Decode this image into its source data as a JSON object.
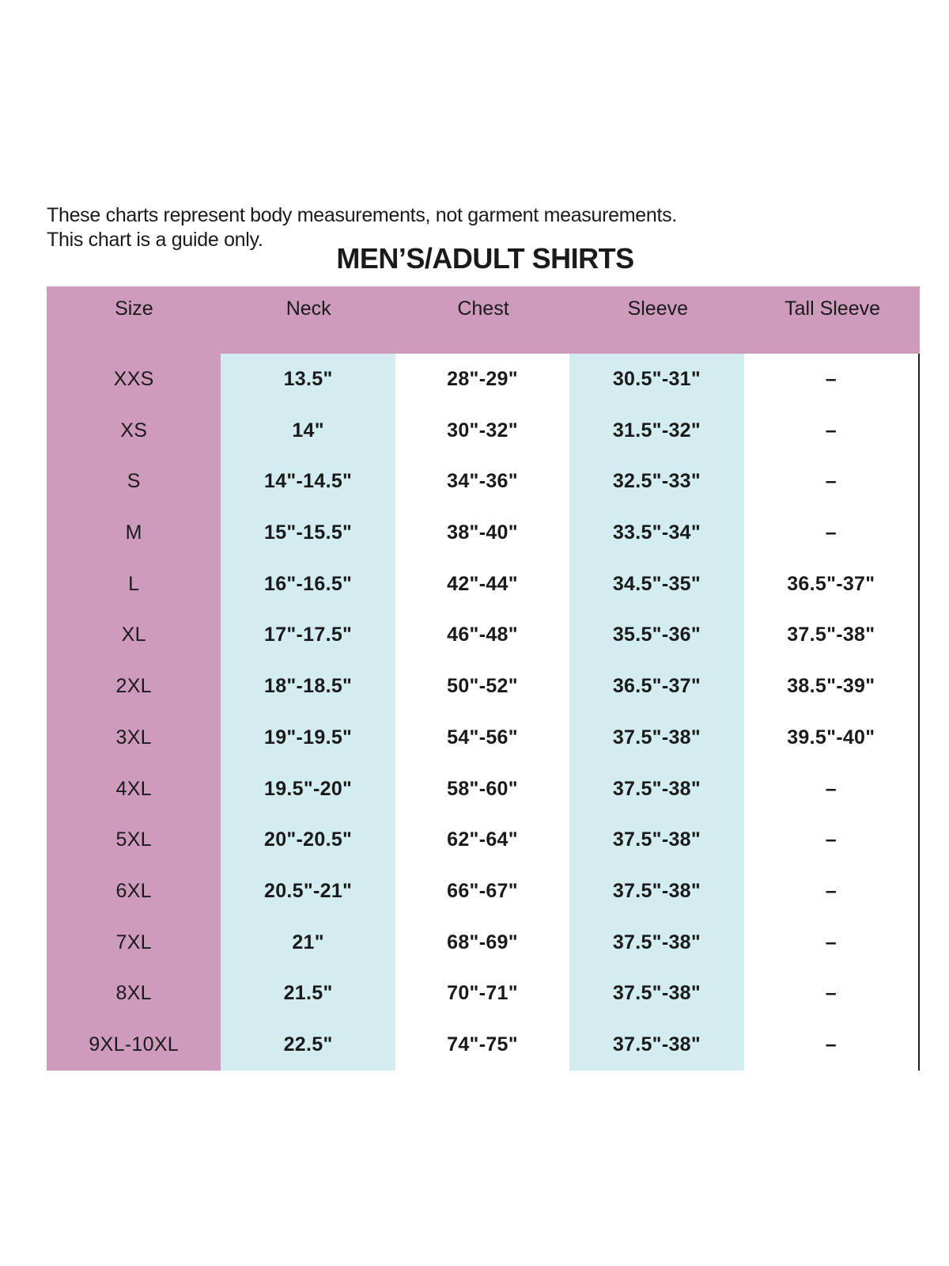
{
  "notes": [
    "These charts represent body measurements, not garment measurements.",
    "This chart is a guide only."
  ],
  "title": "MEN’S/ADULT SHIRTS",
  "colors": {
    "size_column": "#cf9bbd",
    "header": "#cf9bbd",
    "alt_column": "#d3ecf0"
  },
  "table": {
    "headers": [
      "Size",
      "Neck",
      "Chest",
      "Sleeve",
      "Tall Sleeve"
    ],
    "rows": [
      [
        "XXS",
        "13.5\"",
        "28\"-29\"",
        "30.5\"-31\"",
        "–"
      ],
      [
        "XS",
        "14\"",
        "30\"-32\"",
        "31.5\"-32\"",
        "–"
      ],
      [
        "S",
        "14\"-14.5\"",
        "34\"-36\"",
        "32.5\"-33\"",
        "–"
      ],
      [
        "M",
        "15\"-15.5\"",
        "38\"-40\"",
        "33.5\"-34\"",
        "–"
      ],
      [
        "L",
        "16\"-16.5\"",
        "42\"-44\"",
        "34.5\"-35\"",
        "36.5\"-37\""
      ],
      [
        "XL",
        "17\"-17.5\"",
        "46\"-48\"",
        "35.5\"-36\"",
        "37.5\"-38\""
      ],
      [
        "2XL",
        "18\"-18.5\"",
        "50\"-52\"",
        "36.5\"-37\"",
        "38.5\"-39\""
      ],
      [
        "3XL",
        "19\"-19.5\"",
        "54\"-56\"",
        "37.5\"-38\"",
        "39.5\"-40\""
      ],
      [
        "4XL",
        "19.5\"-20\"",
        "58\"-60\"",
        "37.5\"-38\"",
        "–"
      ],
      [
        "5XL",
        "20\"-20.5\"",
        "62\"-64\"",
        "37.5\"-38\"",
        "–"
      ],
      [
        "6XL",
        "20.5\"-21\"",
        "66\"-67\"",
        "37.5\"-38\"",
        "–"
      ],
      [
        "7XL",
        "21\"",
        "68\"-69\"",
        "37.5\"-38\"",
        "–"
      ],
      [
        "8XL",
        "21.5\"",
        "70\"-71\"",
        "37.5\"-38\"",
        "–"
      ],
      [
        "9XL-10XL",
        "22.5\"",
        "74\"-75\"",
        "37.5\"-38\"",
        "–"
      ]
    ]
  }
}
